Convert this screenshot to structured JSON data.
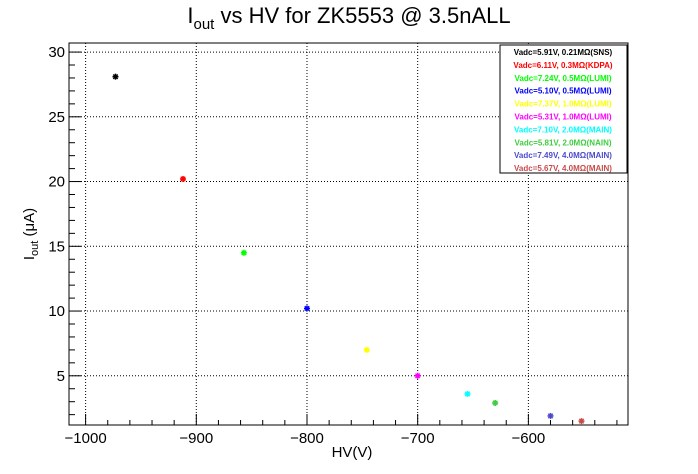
{
  "chart_data": {
    "type": "scatter",
    "title_main": "I",
    "title_sub": "out",
    "title_rest": " vs HV for ZK5553 @ 3.5nALL",
    "xlabel": "HV(V)",
    "ylabel_main": "I",
    "ylabel_sub": "out",
    "ylabel_rest": " (μA)",
    "xlim": [
      -1015,
      -510
    ],
    "ylim": [
      1.2,
      30.7
    ],
    "xticks": [
      -1000,
      -900,
      -800,
      -700,
      -600
    ],
    "xtick_labels": [
      "−1000",
      "−900",
      "−800",
      "−700",
      "−600"
    ],
    "yticks": [
      5,
      10,
      15,
      20,
      25,
      30
    ],
    "ytick_labels": [
      "5",
      "10",
      "15",
      "20",
      "25",
      "30"
    ],
    "grid": true,
    "legend_position": "top-right",
    "series": [
      {
        "name": "Vadc=5.91V, 0.21MΩ(SNS)",
        "color": "#000000",
        "x": [
          -973
        ],
        "y": [
          28.1
        ]
      },
      {
        "name": "Vadc=6.11V, 0.3MΩ(KDPA)",
        "color": "#ff0000",
        "x": [
          -912
        ],
        "y": [
          20.2
        ]
      },
      {
        "name": "Vadc=7.24V, 0.5MΩ(LUMI)",
        "color": "#00ff00",
        "x": [
          -857
        ],
        "y": [
          14.5
        ]
      },
      {
        "name": "Vadc=5.10V, 0.5MΩ(LUMI)",
        "color": "#0000ff",
        "x": [
          -800
        ],
        "y": [
          10.2
        ]
      },
      {
        "name": "Vadc=7.37V, 1.0MΩ(LUMI)",
        "color": "#ffff00",
        "x": [
          -746
        ],
        "y": [
          7.0
        ]
      },
      {
        "name": "Vadc=5.31V, 1.0MΩ(LUMI)",
        "color": "#ff00ff",
        "x": [
          -700
        ],
        "y": [
          5.0
        ]
      },
      {
        "name": "Vadc=7.10V, 2.0MΩ(MAIN)",
        "color": "#00ffff",
        "x": [
          -655
        ],
        "y": [
          3.6
        ]
      },
      {
        "name": "Vadc=5.81V, 2.0MΩ(NAIN)",
        "color": "#3fcc3f",
        "x": [
          -630
        ],
        "y": [
          2.9
        ]
      },
      {
        "name": "Vadc=7.49V, 4.0MΩ(MAIN)",
        "color": "#4b4bcc",
        "x": [
          -580
        ],
        "y": [
          1.9
        ]
      },
      {
        "name": "Vadc=5.67V, 4.0MΩ(MAIN)",
        "color": "#c84b4b",
        "x": [
          -552
        ],
        "y": [
          1.5
        ]
      }
    ]
  }
}
